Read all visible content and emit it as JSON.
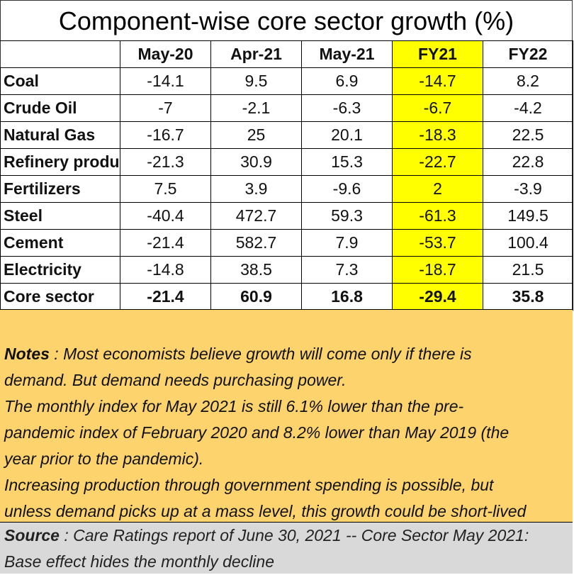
{
  "title": "Component-wise core sector growth (%)",
  "chart_data": {
    "type": "table",
    "title": "Component-wise core sector growth (%)",
    "columns": [
      "May-20",
      "Apr-21",
      "May-21",
      "FY21",
      "FY22"
    ],
    "highlight_column": "FY21",
    "highlight_color": "#ffff00",
    "rows": [
      {
        "label": "Coal",
        "values": [
          "-14.1",
          "9.5",
          "6.9",
          "-14.7",
          "8.2"
        ]
      },
      {
        "label": "Crude Oil",
        "values": [
          "-7",
          "-2.1",
          "-6.3",
          "-6.7",
          "-4.2"
        ]
      },
      {
        "label": "Natural Gas",
        "values": [
          "-16.7",
          "25",
          "20.1",
          "-18.3",
          "22.5"
        ]
      },
      {
        "label": "Refinery produ",
        "values": [
          "-21.3",
          "30.9",
          "15.3",
          "-22.7",
          "22.8"
        ]
      },
      {
        "label": "Fertilizers",
        "values": [
          "7.5",
          "3.9",
          "-9.6",
          "2",
          "-3.9"
        ]
      },
      {
        "label": "Steel",
        "values": [
          "-40.4",
          "472.7",
          "59.3",
          "-61.3",
          "149.5"
        ]
      },
      {
        "label": "Cement",
        "values": [
          "-21.4",
          "582.7",
          "7.9",
          "-53.7",
          "100.4"
        ]
      },
      {
        "label": "Electricity",
        "values": [
          "-14.8",
          "38.5",
          "7.3",
          "-18.7",
          "21.5"
        ]
      },
      {
        "label": "Core sector",
        "values": [
          "-21.4",
          "60.9",
          "16.8",
          "-29.4",
          "35.8"
        ]
      }
    ]
  },
  "notes": {
    "label": "Notes",
    "lines": [
      " : Most economists believe growth will come only if there is",
      "demand.  But demand needs purchasing power.",
      "The monthly index for May 2021 is still 6.1% lower than the pre-",
      "pandemic index of February 2020 and 8.2% lower than May 2019 (the",
      "year prior to the pandemic).",
      "Increasing production through government spending is possible, but",
      "unless demand picks up at a mass level, this growth could be short-lived"
    ],
    "background": "#fdd36e"
  },
  "source": {
    "label": "Source",
    "lines": [
      " : Care Ratings report of June 30, 2021 -- Core Sector May 2021:",
      "Base effect hides the monthly decline"
    ],
    "background": "#d9d9d9"
  }
}
